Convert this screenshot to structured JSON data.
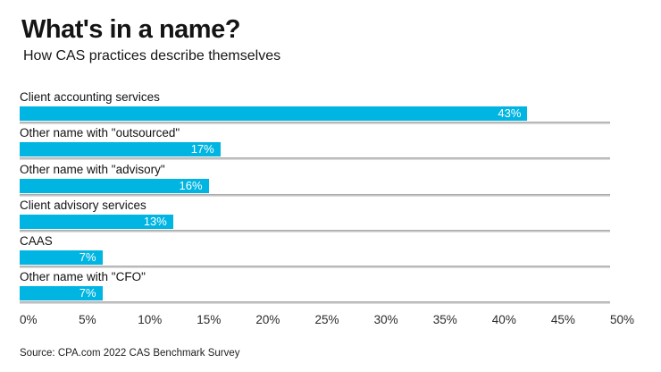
{
  "colors": {
    "bar": "#00b5e2",
    "separator_dark": "#ababab",
    "separator_light": "#dcdcdc",
    "title_text": "#141414",
    "value_text": "#ffffff"
  },
  "chart_data": {
    "type": "bar",
    "orientation": "horizontal",
    "title": "What's in a name?",
    "subtitle": "How CAS practices describe themselves",
    "categories": [
      "Client accounting services",
      "Other name with \"outsourced\"",
      "Other name with \"advisory\"",
      "Client advisory services",
      "CAAS",
      "Other name with \"CFO\""
    ],
    "values": [
      43,
      17,
      16,
      13,
      7,
      7
    ],
    "value_labels": [
      "43%",
      "17%",
      "16%",
      "13%",
      "7%",
      "7%"
    ],
    "xlim": [
      0,
      50
    ],
    "x_tick_values": [
      0,
      5,
      10,
      15,
      20,
      25,
      30,
      35,
      40,
      45,
      50
    ],
    "x_tick_labels": [
      "0%",
      "5%",
      "10%",
      "15%",
      "20%",
      "25%",
      "30%",
      "35%",
      "40%",
      "45%",
      "50%"
    ],
    "xlabel": "",
    "ylabel": "",
    "grid": "horizontal separator line under each bar",
    "legend": "none",
    "value_label_position": "inside-right of bar, white"
  },
  "footer": {
    "source": "Source: CPA.com 2022 CAS Benchmark Survey"
  }
}
